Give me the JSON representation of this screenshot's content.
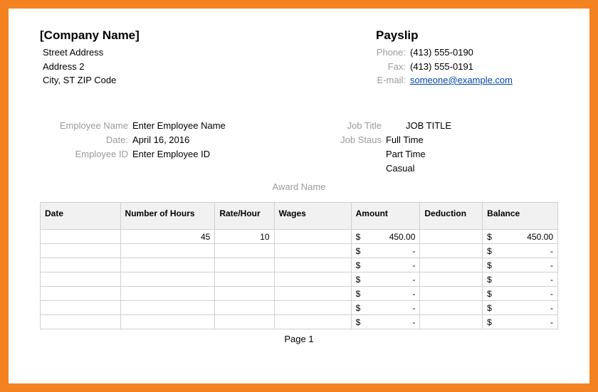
{
  "frame": {
    "border_color": "#f58220",
    "border_width": 12
  },
  "header": {
    "company_name": "[Company Name]",
    "street": "Street Address",
    "address2": "Address 2",
    "city_line": "City, ST  ZIP Code",
    "title": "Payslip",
    "phone_label": "Phone:",
    "phone": "(413) 555-0190",
    "fax_label": "Fax:",
    "fax": "(413) 555-0191",
    "email_label": "E-mail:",
    "email": "someone@example.com"
  },
  "employee": {
    "name_label": "Employee Name",
    "name": "Enter Employee Name",
    "date_label": "Date:",
    "date": "April 16, 2016",
    "id_label": "Employee ID",
    "id": "Enter Employee ID",
    "job_title_label": "Job Title",
    "job_title": "JOB TITLE",
    "job_status_label": "Job Staus",
    "status1": "Full Time",
    "status2": "Part Time",
    "status3": "Casual",
    "award_label": "Award Name"
  },
  "table": {
    "columns": {
      "date": "Date",
      "hours": "Number of Hours",
      "rate": "Rate/Hour",
      "wages": "Wages",
      "amount": "Amount",
      "deduction": "Deduction",
      "balance": "Balance"
    },
    "col_widths": {
      "date": 100,
      "hours": 118,
      "rate": 74,
      "wages": 96,
      "amount": 86,
      "deduction": 78,
      "balance": 94
    },
    "currency": "$",
    "rows": [
      {
        "date": "",
        "hours": "45",
        "rate": "10",
        "wages": "",
        "amount": "450.00",
        "deduction": "",
        "balance": "450.00"
      },
      {
        "date": "",
        "hours": "",
        "rate": "",
        "wages": "",
        "amount": "-",
        "deduction": "",
        "balance": "-"
      },
      {
        "date": "",
        "hours": "",
        "rate": "",
        "wages": "",
        "amount": "-",
        "deduction": "",
        "balance": "-"
      },
      {
        "date": "",
        "hours": "",
        "rate": "",
        "wages": "",
        "amount": "-",
        "deduction": "",
        "balance": "-"
      },
      {
        "date": "",
        "hours": "",
        "rate": "",
        "wages": "",
        "amount": "-",
        "deduction": "",
        "balance": "-"
      },
      {
        "date": "",
        "hours": "",
        "rate": "",
        "wages": "",
        "amount": "-",
        "deduction": "",
        "balance": "-"
      },
      {
        "date": "",
        "hours": "",
        "rate": "",
        "wages": "",
        "amount": "-",
        "deduction": "",
        "balance": "-"
      }
    ]
  },
  "footer": {
    "page": "Page 1"
  }
}
